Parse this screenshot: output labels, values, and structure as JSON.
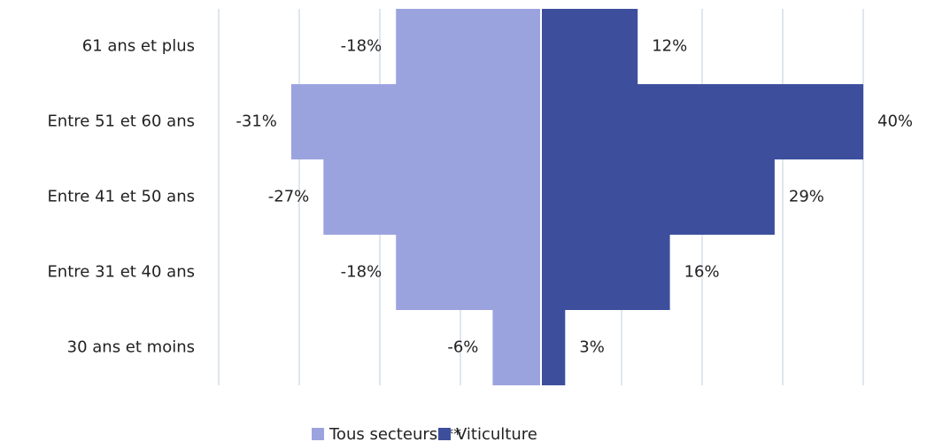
{
  "chart_data": {
    "type": "pyramid",
    "categories": [
      "61 ans et plus",
      "Entre 51 et 60 ans",
      "Entre 41 et 50 ans",
      "Entre 31 et 40 ans",
      "30 ans et moins"
    ],
    "series": [
      {
        "name": "Tous secteurs***",
        "color": "#9ba3df",
        "values": [
          -18,
          -31,
          -27,
          -18,
          -6
        ],
        "value_labels": [
          "-18%",
          "-31%",
          "-27%",
          "-18%",
          "-6%"
        ]
      },
      {
        "name": "Viticulture",
        "color": "#3d4f9c",
        "values": [
          12,
          40,
          29,
          16,
          3
        ],
        "value_labels": [
          "12%",
          "40%",
          "29%",
          "16%",
          "3%"
        ]
      }
    ],
    "xlim": [
      -40,
      40
    ],
    "xticks": [
      -40,
      -30,
      -20,
      -10,
      0,
      10,
      20,
      30,
      40
    ],
    "grid": true,
    "legend": "bottom"
  }
}
